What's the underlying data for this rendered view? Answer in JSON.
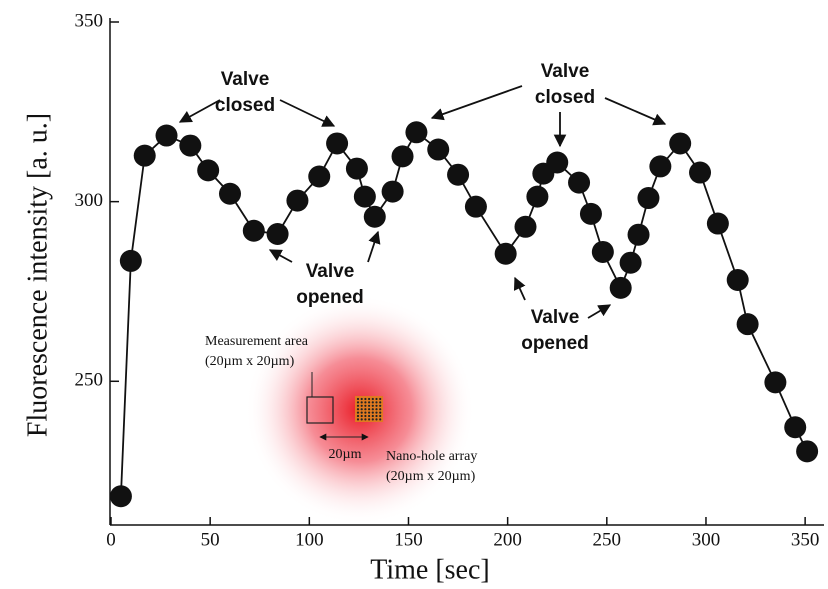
{
  "chart_data": {
    "type": "line",
    "x_label": "Time [sec]",
    "y_label": "Fluorescence intensity [a. u.]",
    "x": [
      5,
      10,
      17,
      28,
      40,
      49,
      60,
      72,
      84,
      94,
      105,
      114,
      124,
      128,
      133,
      142,
      147,
      154,
      165,
      175,
      184,
      199,
      209,
      215,
      218,
      225,
      236,
      242,
      248,
      257,
      262,
      266,
      271,
      277,
      287,
      297,
      306,
      316,
      321,
      335,
      345,
      351
    ],
    "series": [
      {
        "color": "#111111",
        "values": [
          218,
          283.5,
          312.8,
          318.4,
          315.6,
          308.7,
          302.2,
          291.9,
          291,
          300.3,
          307,
          316.2,
          309.2,
          301.4,
          295.8,
          302.8,
          312.6,
          319.3,
          314.5,
          307.5,
          298.6,
          285.5,
          293,
          301.4,
          307.8,
          310.9,
          305.3,
          296.6,
          286,
          276,
          283,
          290.8,
          301,
          309.8,
          316.2,
          308.1,
          293.9,
          278.2,
          265.9,
          249.7,
          237.2,
          230.5
        ]
      }
    ],
    "xlim": [
      0,
      358
    ],
    "ylim": [
      210,
      350
    ],
    "xticks": [
      0,
      50,
      100,
      150,
      200,
      250,
      300,
      350
    ],
    "yticks": [
      250,
      300,
      350
    ],
    "annotations": [
      {
        "lines": [
          "Valve",
          "closed"
        ]
      },
      {
        "lines": [
          "Valve",
          "opened"
        ]
      },
      {
        "lines": [
          "Valve",
          "closed"
        ]
      },
      {
        "lines": [
          "Valve",
          "opened"
        ]
      },
      {
        "lines": [
          "Measurement area",
          "(20µm x 20µm)"
        ]
      },
      {
        "lines": [
          "20µm"
        ]
      },
      {
        "lines": [
          "Nano-hole array",
          "(20µm x 20µm)"
        ]
      }
    ]
  }
}
